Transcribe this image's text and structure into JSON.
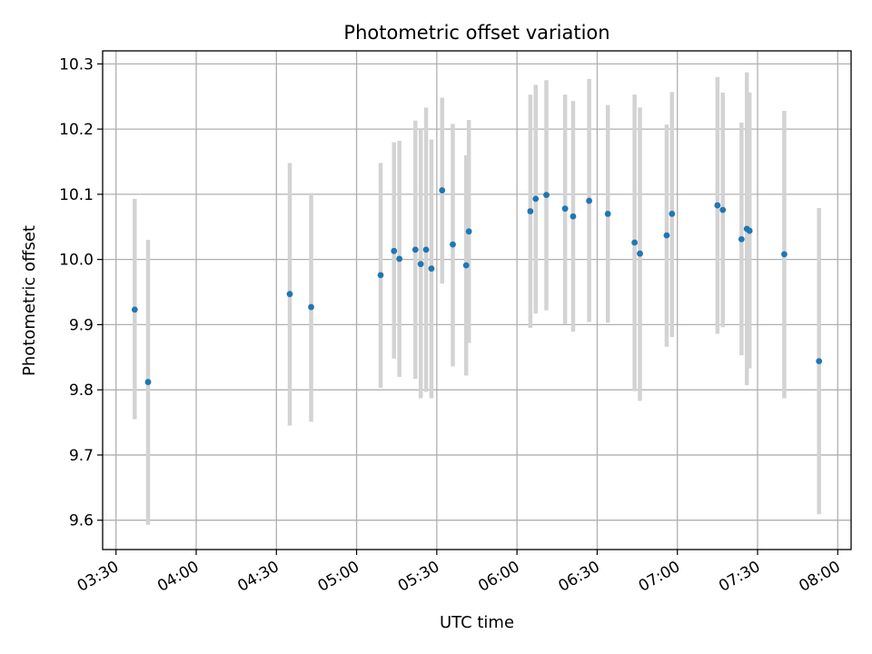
{
  "chart_data": {
    "type": "scatter",
    "title": "Photometric offset variation",
    "xlabel": "UTC time",
    "ylabel": "Photometric offset",
    "xlim": [
      "03:25",
      "08:05"
    ],
    "ylim": [
      9.555,
      10.32
    ],
    "grid": true,
    "x_ticks": [
      "03:30",
      "04:00",
      "04:30",
      "05:00",
      "05:30",
      "06:00",
      "06:30",
      "07:00",
      "07:30",
      "08:00"
    ],
    "y_ticks": [
      "9.6",
      "9.7",
      "9.8",
      "9.9",
      "10.0",
      "10.1",
      "10.2",
      "10.3"
    ],
    "colors": {
      "marker": "#1f77b4",
      "errorbar": "#d3d3d3",
      "grid": "#b0b0b0"
    },
    "points": [
      {
        "x": "03:37",
        "y": 9.923,
        "ylow": 9.755,
        "yhigh": 10.093
      },
      {
        "x": "03:42",
        "y": 9.812,
        "ylow": 9.593,
        "yhigh": 10.03
      },
      {
        "x": "04:35",
        "y": 9.947,
        "ylow": 9.745,
        "yhigh": 10.148
      },
      {
        "x": "04:43",
        "y": 9.927,
        "ylow": 9.751,
        "yhigh": 10.102
      },
      {
        "x": "05:09",
        "y": 9.976,
        "ylow": 9.803,
        "yhigh": 10.148
      },
      {
        "x": "05:14",
        "y": 10.013,
        "ylow": 9.848,
        "yhigh": 10.18
      },
      {
        "x": "05:16",
        "y": 10.001,
        "ylow": 9.82,
        "yhigh": 10.182
      },
      {
        "x": "05:22",
        "y": 10.015,
        "ylow": 9.817,
        "yhigh": 10.213
      },
      {
        "x": "05:24",
        "y": 9.993,
        "ylow": 9.787,
        "yhigh": 10.2
      },
      {
        "x": "05:26",
        "y": 10.015,
        "ylow": 9.797,
        "yhigh": 10.233
      },
      {
        "x": "05:28",
        "y": 9.986,
        "ylow": 9.787,
        "yhigh": 10.184
      },
      {
        "x": "05:32",
        "y": 10.106,
        "ylow": 9.963,
        "yhigh": 10.248
      },
      {
        "x": "05:36",
        "y": 10.023,
        "ylow": 9.836,
        "yhigh": 10.208
      },
      {
        "x": "05:41",
        "y": 9.991,
        "ylow": 9.822,
        "yhigh": 10.16
      },
      {
        "x": "05:42",
        "y": 10.043,
        "ylow": 9.872,
        "yhigh": 10.214
      },
      {
        "x": "06:05",
        "y": 10.074,
        "ylow": 9.895,
        "yhigh": 10.253
      },
      {
        "x": "06:07",
        "y": 10.093,
        "ylow": 9.917,
        "yhigh": 10.268
      },
      {
        "x": "06:11",
        "y": 10.099,
        "ylow": 9.922,
        "yhigh": 10.275
      },
      {
        "x": "06:18",
        "y": 10.078,
        "ylow": 9.901,
        "yhigh": 10.253
      },
      {
        "x": "06:21",
        "y": 10.066,
        "ylow": 9.889,
        "yhigh": 10.243
      },
      {
        "x": "06:27",
        "y": 10.09,
        "ylow": 9.904,
        "yhigh": 10.277
      },
      {
        "x": "06:34",
        "y": 10.07,
        "ylow": 9.903,
        "yhigh": 10.237
      },
      {
        "x": "06:44",
        "y": 10.026,
        "ylow": 9.798,
        "yhigh": 10.253
      },
      {
        "x": "06:46",
        "y": 10.009,
        "ylow": 9.783,
        "yhigh": 10.233
      },
      {
        "x": "06:56",
        "y": 10.037,
        "ylow": 9.866,
        "yhigh": 10.207
      },
      {
        "x": "06:58",
        "y": 10.07,
        "ylow": 9.881,
        "yhigh": 10.257
      },
      {
        "x": "07:15",
        "y": 10.083,
        "ylow": 9.886,
        "yhigh": 10.28
      },
      {
        "x": "07:17",
        "y": 10.076,
        "ylow": 9.896,
        "yhigh": 10.256
      },
      {
        "x": "07:24",
        "y": 10.031,
        "ylow": 9.853,
        "yhigh": 10.21
      },
      {
        "x": "07:26",
        "y": 10.047,
        "ylow": 9.807,
        "yhigh": 10.287
      },
      {
        "x": "07:27",
        "y": 10.044,
        "ylow": 9.833,
        "yhigh": 10.256
      },
      {
        "x": "07:40",
        "y": 10.008,
        "ylow": 9.787,
        "yhigh": 10.228
      },
      {
        "x": "07:53",
        "y": 9.844,
        "ylow": 9.609,
        "yhigh": 10.079
      }
    ]
  }
}
